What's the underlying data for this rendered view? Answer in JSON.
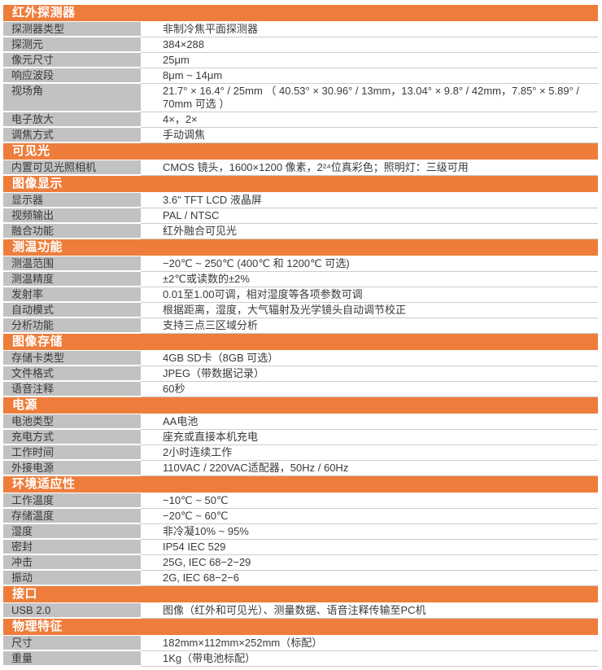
{
  "document_type": "product-specification-sheet",
  "colors": {
    "section_header_bg": "#ee7d3b",
    "section_header_text": "#ffffff",
    "label_bg": "#c2c2c2",
    "row_divider": "#cccccc",
    "text": "#3a3a3a"
  },
  "table": {
    "sections": [
      {
        "title": "红外探测器",
        "rows": [
          {
            "label": "探测器类型",
            "value": "非制冷焦平面探测器"
          },
          {
            "label": "探测元",
            "value": "384×288"
          },
          {
            "label": "像元尺寸",
            "value": "25μm"
          },
          {
            "label": "响应波段",
            "value": "8μm ~ 14μm"
          },
          {
            "label": "视场角",
            "value": "21.7° × 16.4° / 25mm （ 40.53° × 30.96° / 13mm，13.04° × 9.8° / 42mm，7.85° × 5.89° / 70mm 可选 ）"
          },
          {
            "label": "电子放大",
            "value": "4×，2×"
          },
          {
            "label": "调焦方式",
            "value": "手动调焦"
          }
        ]
      },
      {
        "title": "可见光",
        "rows": [
          {
            "label": "内置可见光照相机",
            "value": "CMOS 镜头，1600×1200 像素，2²⁴位真彩色；照明灯：三级可用"
          }
        ]
      },
      {
        "title": "图像显示",
        "rows": [
          {
            "label": "显示器",
            "value": "3.6\" TFT LCD 液晶屏"
          },
          {
            "label": "视频输出",
            "value": "PAL / NTSC"
          },
          {
            "label": "融合功能",
            "value": "红外融合可见光"
          }
        ]
      },
      {
        "title": "测温功能",
        "rows": [
          {
            "label": "测温范围",
            "value": "−20℃ ~ 250℃ (400℃ 和 1200℃ 可选)"
          },
          {
            "label": "测温精度",
            "value": "±2℃或读数的±2%"
          },
          {
            "label": "发射率",
            "value": "0.01至1.00可调，相对湿度等各项参数可调"
          },
          {
            "label": "自动模式",
            "value": "根据距离，湿度，大气辐射及光学镜头自动调节校正"
          },
          {
            "label": "分析功能",
            "value": "支持三点三区域分析"
          }
        ]
      },
      {
        "title": "图像存储",
        "rows": [
          {
            "label": "存储卡类型",
            "value": "4GB SD卡（8GB 可选）"
          },
          {
            "label": "文件格式",
            "value": "JPEG（带数据记录）"
          },
          {
            "label": "语音注释",
            "value": "60秒"
          }
        ]
      },
      {
        "title": "电源",
        "rows": [
          {
            "label": "电池类型",
            "value": "AA电池"
          },
          {
            "label": "充电方式",
            "value": "座充或直接本机充电"
          },
          {
            "label": "工作时间",
            "value": "2小时连续工作"
          },
          {
            "label": "外接电源",
            "value": "110VAC / 220VAC适配器，50Hz / 60Hz"
          }
        ]
      },
      {
        "title": "环境适应性",
        "rows": [
          {
            "label": "工作温度",
            "value": "−10℃ ~ 50℃"
          },
          {
            "label": "存储温度",
            "value": "−20℃ ~ 60℃"
          },
          {
            "label": "湿度",
            "value": "非冷凝10% ~ 95%"
          },
          {
            "label": "密封",
            "value": "IP54 IEC 529"
          },
          {
            "label": "冲击",
            "value": "25G, IEC 68−2−29"
          },
          {
            "label": "振动",
            "value": "2G, IEC 68−2−6"
          }
        ]
      },
      {
        "title": "接口",
        "rows": [
          {
            "label": "USB 2.0",
            "value": "图像（红外和可见光）、测量数据、语音注释传输至PC机"
          }
        ]
      },
      {
        "title": "物理特征",
        "rows": [
          {
            "label": "尺寸",
            "value": "182mm×112mm×252mm（标配）"
          },
          {
            "label": "重量",
            "value": "1Kg（带电池标配）"
          }
        ]
      }
    ]
  }
}
